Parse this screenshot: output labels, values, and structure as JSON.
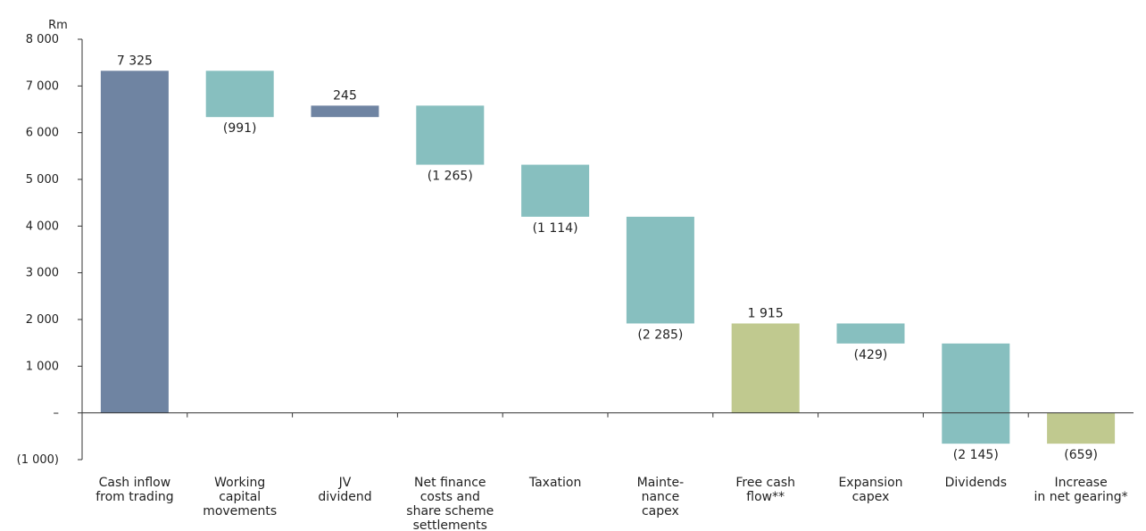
{
  "chart_data": {
    "type": "bar",
    "subtype": "waterfall",
    "unit_label": "Rm",
    "ylim": [
      -1000,
      8000
    ],
    "yticks": [
      {
        "value": 8000,
        "label": "8 000"
      },
      {
        "value": 7000,
        "label": "7 000"
      },
      {
        "value": 6000,
        "label": "6 000"
      },
      {
        "value": 5000,
        "label": "5 000"
      },
      {
        "value": 4000,
        "label": "4 000"
      },
      {
        "value": 3000,
        "label": "3 000"
      },
      {
        "value": 2000,
        "label": "2 000"
      },
      {
        "value": 1000,
        "label": "1 000"
      },
      {
        "value": 0,
        "label": "–"
      },
      {
        "value": -1000,
        "label": "(1 000)"
      }
    ],
    "grid": false,
    "colors": {
      "total": "#6f84a2",
      "change": "#87bfbf",
      "free_cash_flow": "#c0c98f"
    },
    "categories": [
      {
        "label": [
          "Cash inflow",
          "from trading"
        ],
        "start": 0,
        "end": 7325,
        "value_label": "7 325",
        "kind": "total",
        "label_pos": "above"
      },
      {
        "label": [
          "Working",
          "capital",
          "movements"
        ],
        "start": 7325,
        "end": 6334,
        "value_label": "(991)",
        "kind": "change",
        "label_pos": "below"
      },
      {
        "label": [
          "JV",
          "dividend"
        ],
        "start": 6334,
        "end": 6579,
        "value_label": "245",
        "kind": "total",
        "label_pos": "above"
      },
      {
        "label": [
          "Net finance",
          "costs and",
          "share scheme",
          "settlements"
        ],
        "start": 6579,
        "end": 5314,
        "value_label": "(1 265)",
        "kind": "change",
        "label_pos": "below"
      },
      {
        "label": [
          "Taxation"
        ],
        "start": 5314,
        "end": 4200,
        "value_label": "(1 114)",
        "kind": "change",
        "label_pos": "below"
      },
      {
        "label": [
          "Mainte-",
          "nance",
          "capex"
        ],
        "start": 4200,
        "end": 1915,
        "value_label": "(2 285)",
        "kind": "change",
        "label_pos": "below"
      },
      {
        "label": [
          "Free cash",
          "flow**"
        ],
        "start": 0,
        "end": 1915,
        "value_label": "1 915",
        "kind": "free_cash_flow",
        "label_pos": "above"
      },
      {
        "label": [
          "Expansion",
          "capex"
        ],
        "start": 1915,
        "end": 1486,
        "value_label": "(429)",
        "kind": "change",
        "label_pos": "below"
      },
      {
        "label": [
          "Dividends"
        ],
        "start": 1486,
        "end": -659,
        "value_label": "(2 145)",
        "kind": "change",
        "label_pos": "below"
      },
      {
        "label": [
          "Increase",
          "in net gearing*"
        ],
        "start": 0,
        "end": -659,
        "value_label": "(659)",
        "kind": "free_cash_flow",
        "label_pos": "below"
      }
    ]
  }
}
